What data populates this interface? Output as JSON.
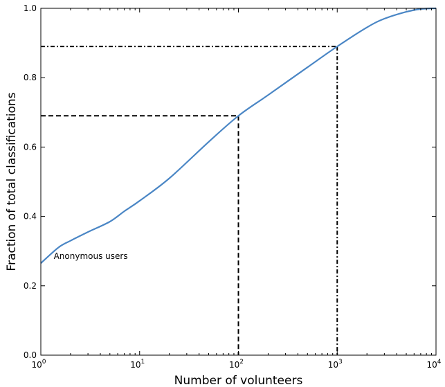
{
  "chart_data": {
    "type": "line",
    "title": "",
    "xlabel": "Number of volunteers",
    "ylabel": "Fraction of total classifications",
    "xscale": "log",
    "xlim": [
      1,
      10000
    ],
    "ylim": [
      0,
      1
    ],
    "x_ticks": [
      {
        "value": 1,
        "base": "10",
        "exp": "0"
      },
      {
        "value": 10,
        "base": "10",
        "exp": "1"
      },
      {
        "value": 100,
        "base": "10",
        "exp": "2"
      },
      {
        "value": 1000,
        "base": "10",
        "exp": "3"
      },
      {
        "value": 10000,
        "base": "10",
        "exp": "4"
      }
    ],
    "y_ticks": [
      "0.0",
      "0.2",
      "0.4",
      "0.6",
      "0.8",
      "1.0"
    ],
    "grid": false,
    "series": [
      {
        "color": "#4a86c5",
        "x": [
          1,
          1.5,
          2,
          3,
          5,
          7,
          10,
          20,
          50,
          100,
          200,
          500,
          1000,
          2000,
          3000,
          5000,
          7000,
          10000
        ],
        "y": [
          0.265,
          0.31,
          0.33,
          0.355,
          0.385,
          0.415,
          0.445,
          0.51,
          0.615,
          0.69,
          0.75,
          0.83,
          0.89,
          0.945,
          0.97,
          0.99,
          0.998,
          1.0
        ]
      }
    ],
    "reference_lines": [
      {
        "style": "dashed",
        "x": 100,
        "y": 0.69
      },
      {
        "style": "dashdot",
        "x": 1000,
        "y": 0.89
      }
    ],
    "annotations": [
      {
        "text": "Anonymous users",
        "x": 1.35,
        "y": 0.265
      }
    ]
  }
}
